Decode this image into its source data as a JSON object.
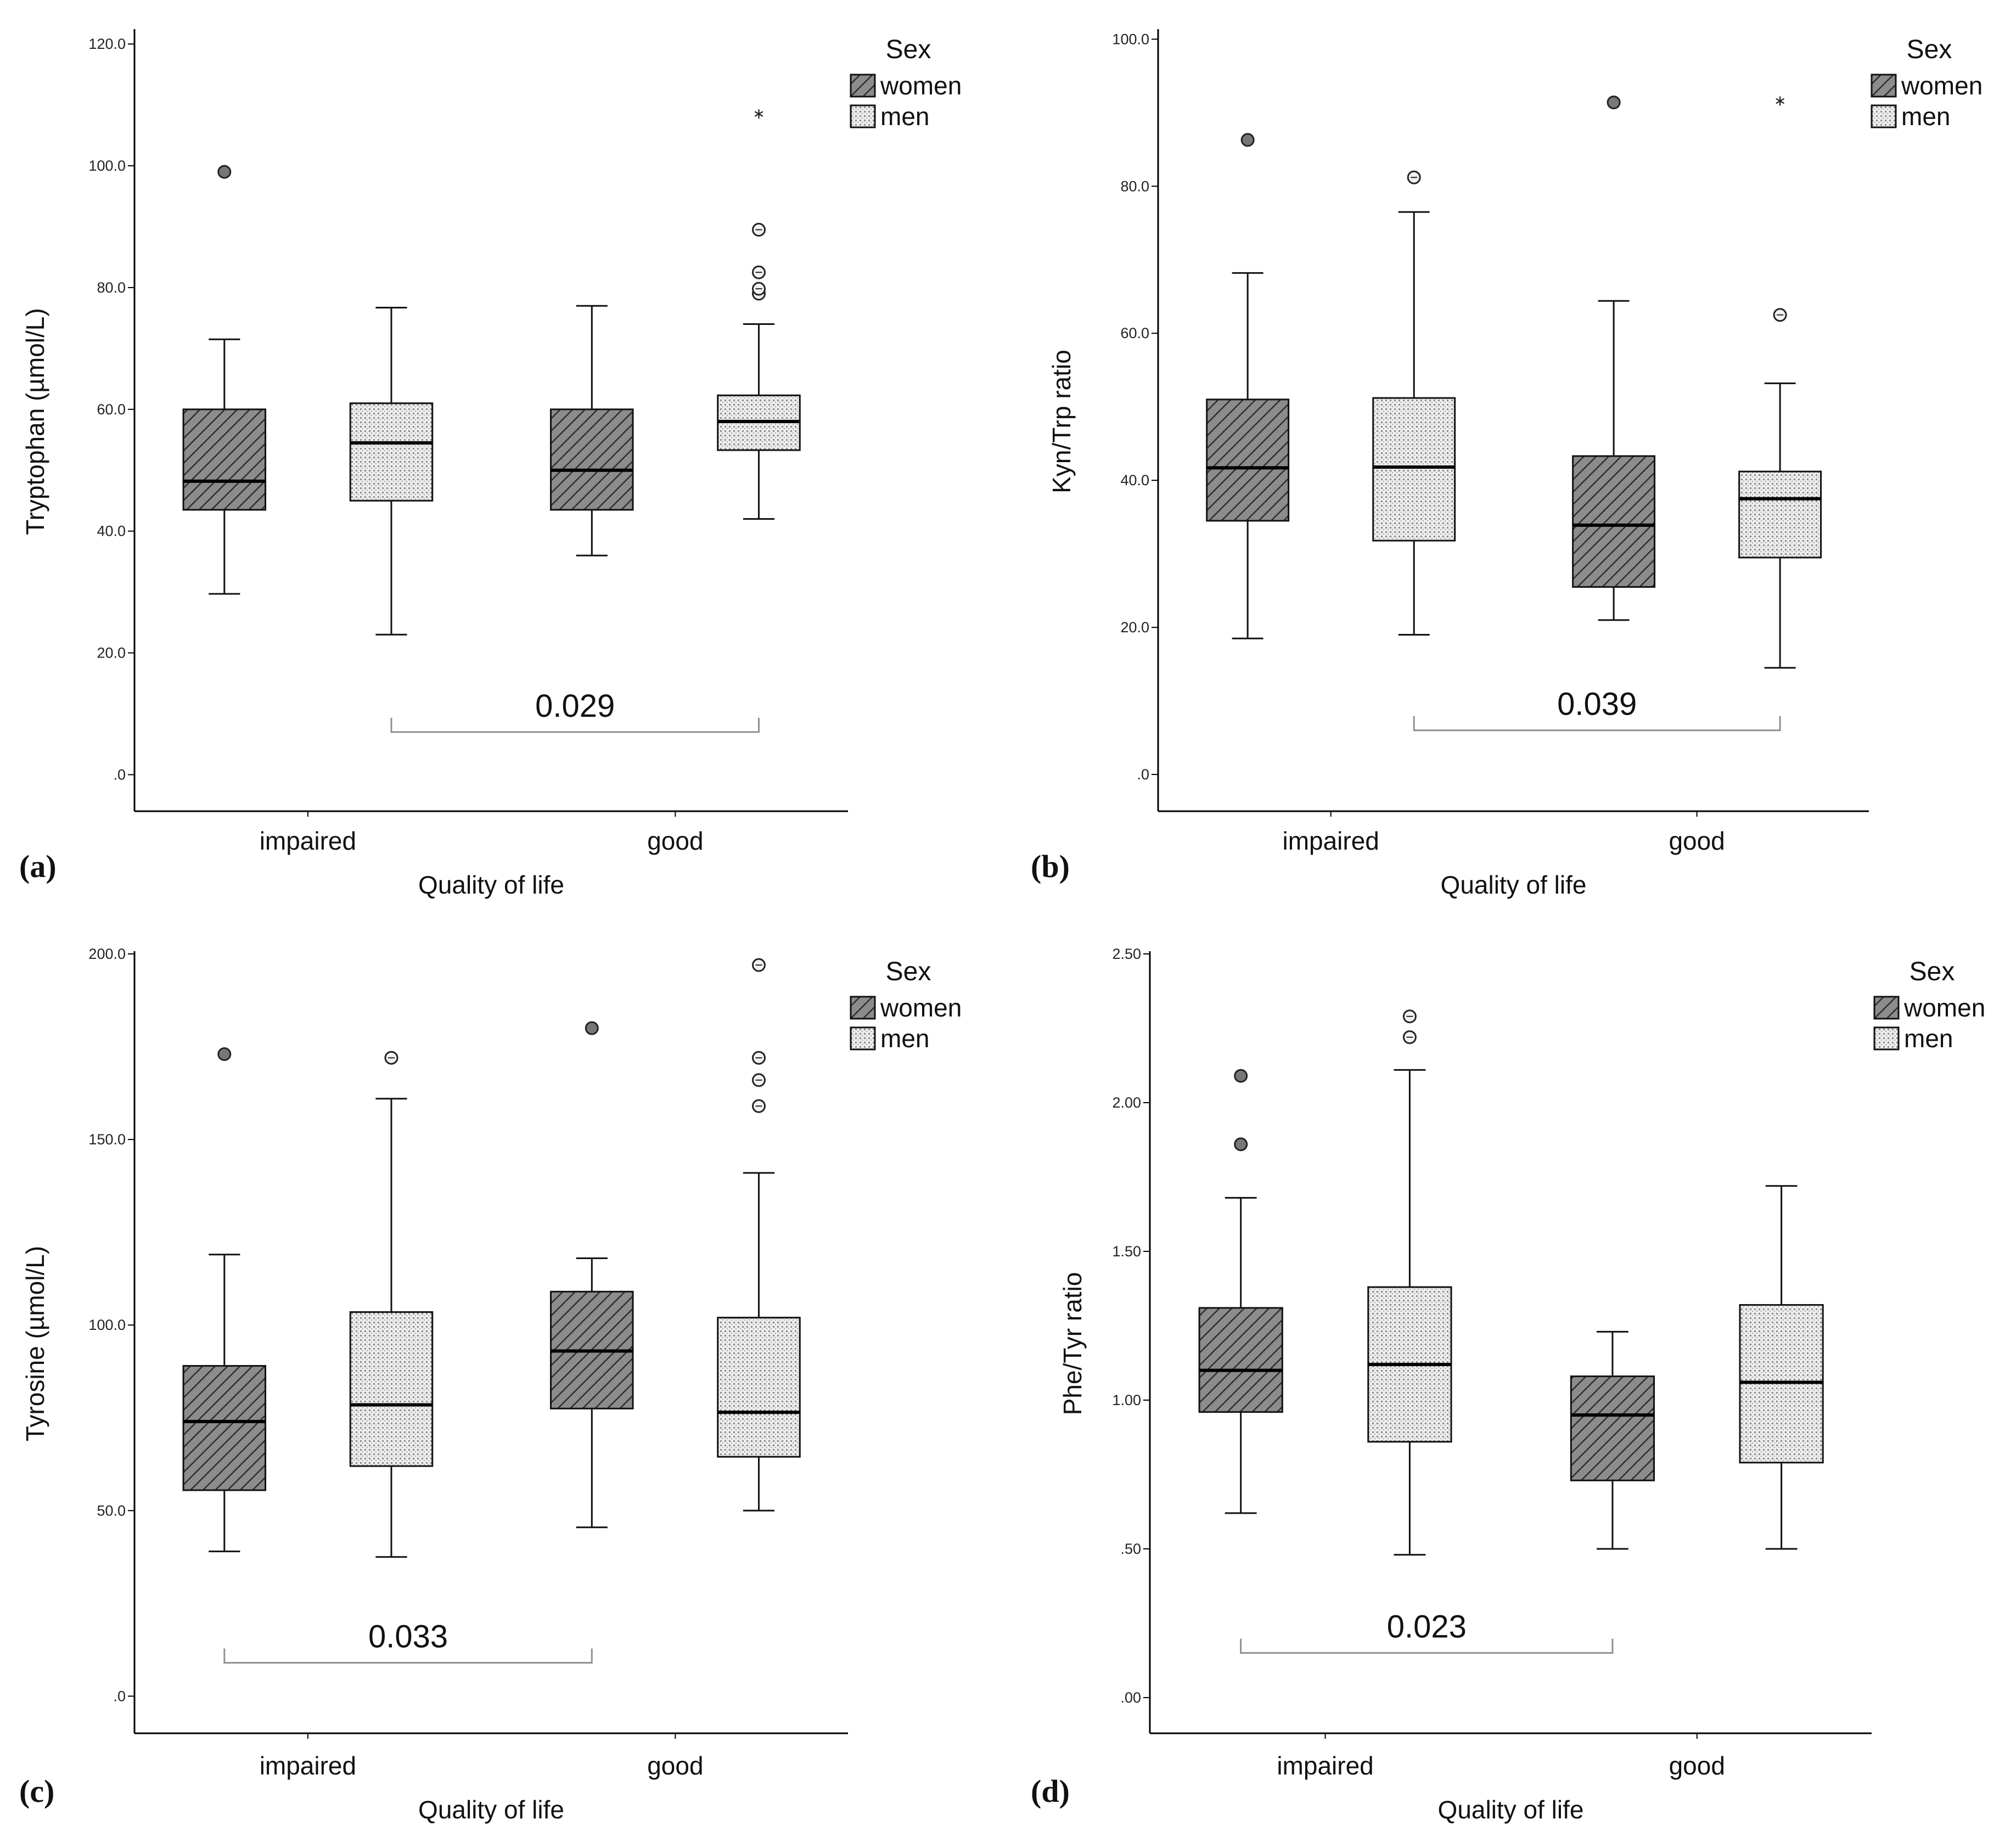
{
  "colors": {
    "women": "#8c8c8c",
    "men": "#e4e4e4",
    "ink": "#000000",
    "bracket": "#909090",
    "faint": "#d0d0d0"
  },
  "chart_data": [
    {
      "type": "boxplot",
      "panel": "(a)",
      "ylabel": "Tryptophan (µmol/L)",
      "xlabel": "Quality of life",
      "categories": [
        "impaired",
        "good"
      ],
      "ylim": [
        -6,
        122
      ],
      "yticks": [
        {
          "value": 0,
          "label": ".0"
        },
        {
          "value": 20,
          "label": "20.0"
        },
        {
          "value": 40,
          "label": "40.0"
        },
        {
          "value": 60,
          "label": "60.0"
        },
        {
          "value": 80,
          "label": "80.0"
        },
        {
          "value": 100,
          "label": "100.0"
        },
        {
          "value": 120,
          "label": "120.0"
        }
      ],
      "legend_title": "Sex",
      "legend_items": [
        "women",
        "men"
      ],
      "series": [
        {
          "name": "women",
          "boxes": [
            {
              "whisker_low": 29.7,
              "q1": 43.5,
              "median": 48.2,
              "q3": 60.0,
              "whisker_high": 71.5,
              "outliers": [
                99.0
              ],
              "extremes": []
            },
            {
              "whisker_low": 36.0,
              "q1": 43.5,
              "median": 50.0,
              "q3": 60.0,
              "whisker_high": 77.0,
              "outliers": [],
              "extremes": []
            }
          ]
        },
        {
          "name": "men",
          "boxes": [
            {
              "whisker_low": 23.0,
              "q1": 45.0,
              "median": 54.5,
              "q3": 61.0,
              "whisker_high": 76.7,
              "outliers": [],
              "extremes": []
            },
            {
              "whisker_low": 42.0,
              "q1": 53.3,
              "median": 58.0,
              "q3": 62.3,
              "whisker_high": 74.0,
              "outliers": [
                79.0,
                79.8,
                82.5,
                89.5
              ],
              "extremes": [
                109.0
              ]
            }
          ]
        }
      ],
      "annotation": {
        "text": "0.029",
        "from": [
          0,
          1
        ],
        "to": [
          1,
          1
        ],
        "y": 7
      }
    },
    {
      "type": "boxplot",
      "panel": "(b)",
      "ylabel": "Kyn/Trp ratio",
      "xlabel": "Quality of life",
      "categories": [
        "impaired",
        "good"
      ],
      "ylim": [
        -5,
        101
      ],
      "yticks": [
        {
          "value": 0,
          "label": ".0"
        },
        {
          "value": 20,
          "label": "20.0"
        },
        {
          "value": 40,
          "label": "40.0"
        },
        {
          "value": 60,
          "label": "60.0"
        },
        {
          "value": 80,
          "label": "80.0"
        },
        {
          "value": 100,
          "label": "100.0"
        }
      ],
      "legend_title": "Sex",
      "legend_items": [
        "women",
        "men"
      ],
      "series": [
        {
          "name": "women",
          "boxes": [
            {
              "whisker_low": 18.5,
              "q1": 34.5,
              "median": 41.7,
              "q3": 51.0,
              "whisker_high": 68.2,
              "outliers": [
                86.3
              ],
              "extremes": []
            },
            {
              "whisker_low": 21.0,
              "q1": 25.5,
              "median": 33.9,
              "q3": 43.3,
              "whisker_high": 64.4,
              "outliers": [
                91.4
              ],
              "extremes": []
            }
          ]
        },
        {
          "name": "men",
          "boxes": [
            {
              "whisker_low": 19.0,
              "q1": 31.8,
              "median": 41.8,
              "q3": 51.2,
              "whisker_high": 76.5,
              "outliers": [
                81.2
              ],
              "extremes": []
            },
            {
              "whisker_low": 14.5,
              "q1": 29.5,
              "median": 37.5,
              "q3": 41.2,
              "whisker_high": 53.2,
              "outliers": [
                62.5
              ],
              "extremes": [
                92.0
              ]
            }
          ]
        }
      ],
      "annotation": {
        "text": "0.039",
        "from": [
          0,
          1
        ],
        "to": [
          1,
          1
        ],
        "y": 6
      }
    },
    {
      "type": "boxplot",
      "panel": "(c)",
      "ylabel": "Tyrosine (µmol/L)",
      "xlabel": "Quality of life",
      "categories": [
        "impaired",
        "good"
      ],
      "ylim": [
        -10,
        200
      ],
      "yticks": [
        {
          "value": 0,
          "label": ".0"
        },
        {
          "value": 50,
          "label": "50.0"
        },
        {
          "value": 100,
          "label": "100.0"
        },
        {
          "value": 150,
          "label": "150.0"
        },
        {
          "value": 200,
          "label": "200.0"
        }
      ],
      "legend_title": "Sex",
      "legend_items": [
        "women",
        "men"
      ],
      "series": [
        {
          "name": "women",
          "boxes": [
            {
              "whisker_low": 39.0,
              "q1": 55.5,
              "median": 74.0,
              "q3": 89.0,
              "whisker_high": 119.0,
              "outliers": [
                173.0
              ],
              "extremes": []
            },
            {
              "whisker_low": 45.5,
              "q1": 77.5,
              "median": 93.0,
              "q3": 109.0,
              "whisker_high": 118.0,
              "outliers": [
                180.0
              ],
              "extremes": []
            }
          ]
        },
        {
          "name": "men",
          "boxes": [
            {
              "whisker_low": 37.5,
              "q1": 62.0,
              "median": 78.5,
              "q3": 103.5,
              "whisker_high": 161.0,
              "outliers": [
                172.0
              ],
              "extremes": []
            },
            {
              "whisker_low": 50.0,
              "q1": 64.5,
              "median": 76.5,
              "q3": 102.0,
              "whisker_high": 141.0,
              "outliers": [
                159.0,
                166.0,
                172.0,
                197.0
              ],
              "extremes": []
            }
          ]
        }
      ],
      "annotation": {
        "text": "0.033",
        "from": [
          0,
          0
        ],
        "to": [
          1,
          0
        ],
        "y": 9
      }
    },
    {
      "type": "boxplot",
      "panel": "(d)",
      "ylabel": "Phe/Tyr ratio",
      "xlabel": "Quality of life",
      "categories": [
        "impaired",
        "good"
      ],
      "ylim": [
        -0.12,
        2.5
      ],
      "yticks": [
        {
          "value": 0,
          "label": ".00"
        },
        {
          "value": 0.5,
          "label": ".50"
        },
        {
          "value": 1.0,
          "label": "1.00"
        },
        {
          "value": 1.5,
          "label": "1.50"
        },
        {
          "value": 2.0,
          "label": "2.00"
        },
        {
          "value": 2.5,
          "label": "2.50"
        }
      ],
      "legend_title": "Sex",
      "legend_items": [
        "women",
        "men"
      ],
      "series": [
        {
          "name": "women",
          "boxes": [
            {
              "whisker_low": 0.62,
              "q1": 0.96,
              "median": 1.1,
              "q3": 1.31,
              "whisker_high": 1.68,
              "outliers": [
                1.86,
                2.09
              ],
              "extremes": []
            },
            {
              "whisker_low": 0.5,
              "q1": 0.73,
              "median": 0.95,
              "q3": 1.08,
              "whisker_high": 1.23,
              "outliers": [],
              "extremes": []
            }
          ]
        },
        {
          "name": "men",
          "boxes": [
            {
              "whisker_low": 0.48,
              "q1": 0.86,
              "median": 1.12,
              "q3": 1.38,
              "whisker_high": 2.11,
              "outliers": [
                2.22,
                2.29
              ],
              "extremes": []
            },
            {
              "whisker_low": 0.5,
              "q1": 0.79,
              "median": 1.06,
              "q3": 1.32,
              "whisker_high": 1.72,
              "outliers": [],
              "extremes": []
            }
          ]
        }
      ],
      "annotation": {
        "text": "0.023",
        "from": [
          0,
          0
        ],
        "to": [
          1,
          0
        ],
        "y": 0.15
      }
    }
  ]
}
